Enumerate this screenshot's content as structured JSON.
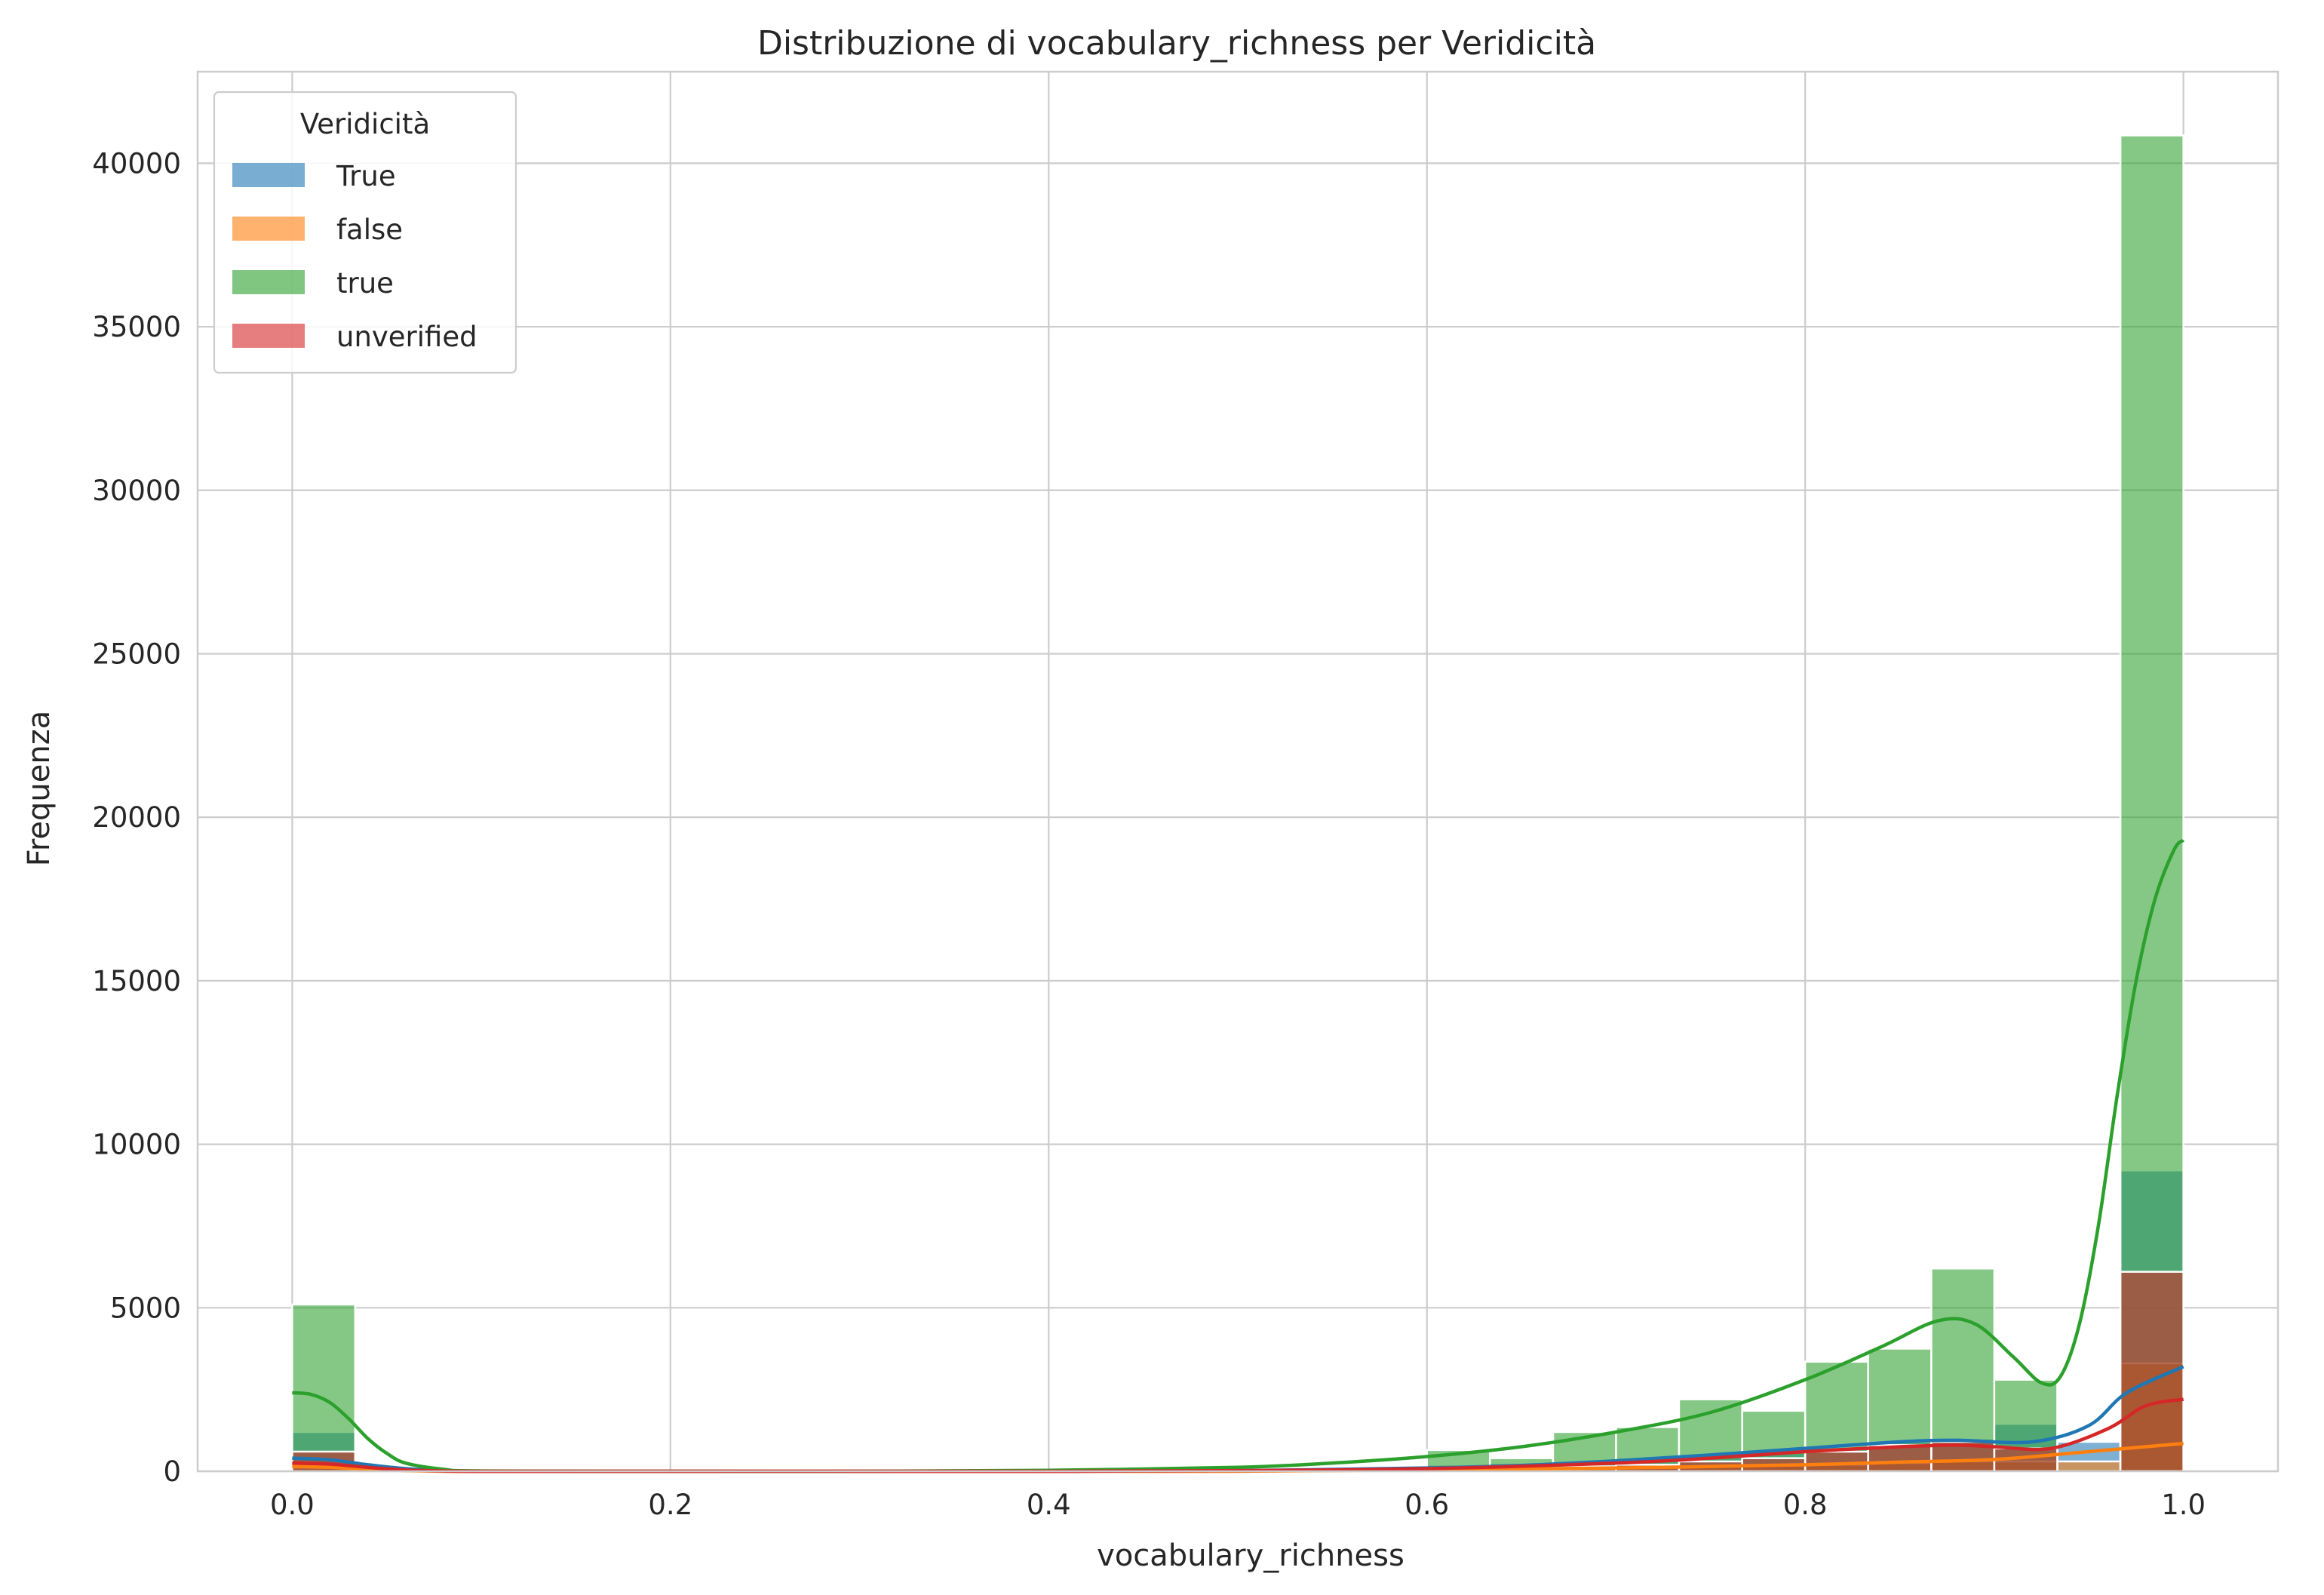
{
  "chart_data": {
    "type": "histogram",
    "title": "Distribuzione di vocabulary_richness per Veridicità",
    "xlabel": "vocabulary_richness",
    "ylabel": "Frequenza",
    "xlim": [
      -0.05,
      1.05
    ],
    "ylim": [
      0,
      42800
    ],
    "xticks": [
      0.0,
      0.2,
      0.4,
      0.6,
      0.8,
      1.0
    ],
    "xtick_labels": [
      "0.0",
      "0.2",
      "0.4",
      "0.6",
      "0.8",
      "1.0"
    ],
    "yticks": [
      0,
      5000,
      10000,
      15000,
      20000,
      25000,
      30000,
      35000,
      40000
    ],
    "ytick_labels": [
      "0",
      "5000",
      "10000",
      "15000",
      "20000",
      "25000",
      "30000",
      "35000",
      "40000"
    ],
    "grid": true,
    "legend": {
      "title": "Veridicità",
      "location": "top-left"
    },
    "bin_edges": [
      0.0,
      0.0333,
      0.0667,
      0.1,
      0.1333,
      0.1667,
      0.2,
      0.2333,
      0.2667,
      0.3,
      0.3333,
      0.3667,
      0.4,
      0.4333,
      0.4667,
      0.5,
      0.5333,
      0.5667,
      0.6,
      0.6333,
      0.6667,
      0.7,
      0.7333,
      0.7667,
      0.8,
      0.8333,
      0.8667,
      0.9,
      0.9333,
      0.9667,
      1.0
    ],
    "series": [
      {
        "name": "True",
        "color": "#1f77b4",
        "counts": [
          1200,
          0,
          0,
          0,
          0,
          0,
          0,
          0,
          0,
          0,
          0,
          0,
          0,
          0,
          0,
          0,
          0,
          0,
          200,
          250,
          300,
          400,
          500,
          600,
          700,
          900,
          1000,
          1450,
          900,
          9200
        ],
        "kde_x": [
          0.0,
          0.02,
          0.04,
          0.06,
          0.08,
          0.1,
          0.2,
          0.3,
          0.4,
          0.5,
          0.6,
          0.65,
          0.7,
          0.75,
          0.8,
          0.85,
          0.88,
          0.92,
          0.95,
          0.97,
          1.0
        ],
        "kde_y": [
          400,
          350,
          200,
          80,
          20,
          0,
          0,
          0,
          0,
          20,
          100,
          180,
          320,
          500,
          700,
          900,
          950,
          900,
          1400,
          2400,
          3200
        ]
      },
      {
        "name": "false",
        "color": "#ff7f0e",
        "counts": [
          100,
          0,
          0,
          0,
          0,
          0,
          0,
          0,
          0,
          0,
          0,
          0,
          0,
          0,
          0,
          0,
          0,
          0,
          50,
          60,
          80,
          100,
          150,
          200,
          200,
          250,
          300,
          300,
          300,
          3300
        ],
        "kde_x": [
          0.0,
          0.02,
          0.04,
          0.06,
          0.08,
          0.1,
          0.2,
          0.3,
          0.4,
          0.5,
          0.6,
          0.7,
          0.8,
          0.85,
          0.9,
          0.95,
          1.0
        ],
        "kde_y": [
          150,
          120,
          60,
          20,
          0,
          0,
          0,
          0,
          0,
          0,
          40,
          100,
          200,
          280,
          360,
          600,
          850
        ]
      },
      {
        "name": "true",
        "color": "#2ca02c",
        "counts": [
          5100,
          0,
          0,
          0,
          0,
          0,
          0,
          0,
          0,
          0,
          0,
          0,
          0,
          0,
          0,
          0,
          0,
          0,
          650,
          400,
          1200,
          1350,
          2200,
          1850,
          3350,
          3750,
          6200,
          2800,
          0,
          40850
        ],
        "kde_x": [
          0.0,
          0.01,
          0.02,
          0.03,
          0.04,
          0.05,
          0.06,
          0.08,
          0.1,
          0.2,
          0.3,
          0.4,
          0.5,
          0.55,
          0.6,
          0.65,
          0.7,
          0.75,
          0.8,
          0.84,
          0.87,
          0.89,
          0.91,
          0.925,
          0.935,
          0.945,
          0.955,
          0.965,
          0.975,
          0.985,
          0.995,
          1.0
        ],
        "kde_y": [
          2400,
          2350,
          2100,
          1600,
          1000,
          550,
          250,
          60,
          10,
          0,
          0,
          30,
          120,
          250,
          450,
          750,
          1200,
          1800,
          2800,
          3800,
          4600,
          4500,
          3500,
          2700,
          2900,
          4500,
          7500,
          11500,
          15000,
          17500,
          19000,
          19300
        ]
      },
      {
        "name": "unverified",
        "color": "#d62728",
        "counts": [
          600,
          0,
          0,
          0,
          0,
          0,
          0,
          0,
          0,
          0,
          0,
          0,
          0,
          0,
          0,
          0,
          0,
          0,
          80,
          100,
          150,
          200,
          300,
          400,
          600,
          800,
          900,
          700,
          0,
          6100
        ],
        "kde_x": [
          0.0,
          0.02,
          0.04,
          0.06,
          0.08,
          0.1,
          0.2,
          0.3,
          0.4,
          0.5,
          0.6,
          0.7,
          0.75,
          0.8,
          0.85,
          0.88,
          0.9,
          0.93,
          0.96,
          0.98,
          1.0
        ],
        "kde_y": [
          250,
          220,
          120,
          40,
          10,
          0,
          0,
          0,
          0,
          20,
          80,
          250,
          400,
          600,
          750,
          800,
          750,
          700,
          1300,
          2000,
          2200
        ]
      }
    ]
  }
}
